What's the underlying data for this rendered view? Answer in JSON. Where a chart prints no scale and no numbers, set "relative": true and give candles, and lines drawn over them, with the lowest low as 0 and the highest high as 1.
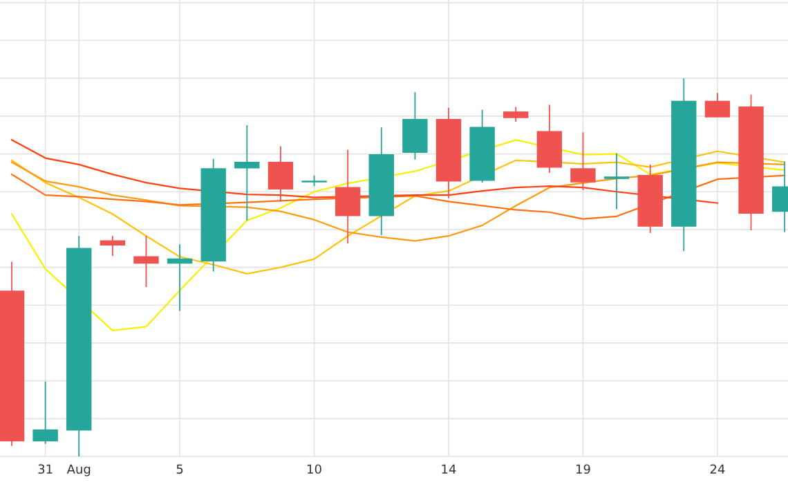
{
  "chart_data": {
    "type": "candlestick",
    "relative": true,
    "grid": true,
    "legend": false,
    "categories": [
      null,
      "31",
      "Aug",
      null,
      null,
      "5",
      null,
      null,
      null,
      "10",
      null,
      null,
      null,
      "14",
      null,
      null,
      null,
      "19",
      null,
      null,
      null,
      "24",
      null,
      null
    ],
    "ohlc": [
      [
        0.437,
        0.515,
        0.028,
        0.041
      ],
      [
        0.041,
        0.198,
        0.033,
        0.07
      ],
      [
        0.07,
        0.583,
        0.0,
        0.55
      ],
      [
        0.57,
        0.583,
        0.53,
        0.559
      ],
      [
        0.528,
        0.583,
        0.448,
        0.511
      ],
      [
        0.511,
        0.561,
        0.385,
        0.522
      ],
      [
        0.517,
        0.787,
        0.489,
        0.761
      ],
      [
        0.763,
        0.876,
        0.624,
        0.778
      ],
      [
        0.778,
        0.82,
        0.674,
        0.707
      ],
      [
        0.726,
        0.743,
        0.715,
        0.728
      ],
      [
        0.711,
        0.811,
        0.563,
        0.637
      ],
      [
        0.637,
        0.87,
        0.585,
        0.798
      ],
      [
        0.804,
        0.963,
        0.785,
        0.891
      ],
      [
        0.891,
        0.922,
        0.683,
        0.728
      ],
      [
        0.73,
        0.917,
        0.724,
        0.87
      ],
      [
        0.911,
        0.924,
        0.885,
        0.896
      ],
      [
        0.859,
        0.93,
        0.75,
        0.765
      ],
      [
        0.761,
        0.857,
        0.704,
        0.726
      ],
      [
        0.735,
        0.802,
        0.654,
        0.739
      ],
      [
        0.743,
        0.772,
        0.591,
        0.609
      ],
      [
        0.609,
        1.0,
        0.543,
        0.939
      ],
      [
        0.939,
        0.961,
        0.898,
        0.898
      ],
      [
        0.924,
        0.957,
        0.598,
        0.643
      ],
      [
        0.648,
        0.78,
        0.593,
        0.713
      ]
    ],
    "colors": [
      "#ef5350",
      "#26a69a",
      "#26a69a",
      "#ef5350",
      "#ef5350",
      "#26a69a",
      "#26a69a",
      "#26a69a",
      "#ef5350",
      "#26a69a",
      "#ef5350",
      "#26a69a",
      "#26a69a",
      "#ef5350",
      "#26a69a",
      "#ef5350",
      "#ef5350",
      "#ef5350",
      "#26a69a",
      "#ef5350",
      "#26a69a",
      "#ef5350",
      "#ef5350",
      "#26a69a"
    ],
    "series": [
      {
        "type": "line",
        "color": "#f7f000",
        "values": [
          0.641,
          0.496,
          null,
          0.333,
          0.343,
          0.439,
          null,
          0.624,
          0.657,
          0.7,
          0.722,
          null,
          0.754,
          null,
          null,
          0.837,
          null,
          0.798,
          0.8,
          0.746,
          null,
          0.776,
          null,
          0.757
        ]
      },
      {
        "type": "line",
        "color": "#ffc20e",
        "values": [
          0.783,
          0.724,
          0.685,
          0.641,
          0.583,
          0.528,
          0.507,
          0.483,
          0.5,
          0.522,
          0.583,
          null,
          0.689,
          0.702,
          null,
          0.783,
          null,
          0.774,
          0.778,
          0.765,
          null,
          0.807,
          null,
          0.778
        ]
      },
      {
        "type": "line",
        "color": "#ff9a10",
        "values": [
          0.778,
          0.728,
          0.713,
          0.691,
          0.678,
          0.663,
          null,
          0.659,
          0.648,
          0.626,
          0.593,
          0.58,
          0.57,
          0.583,
          0.611,
          0.663,
          0.711,
          null,
          0.735,
          0.743,
          null,
          0.778,
          null,
          0.772
        ]
      },
      {
        "type": "line",
        "color": "#ff6e10",
        "values": [
          0.746,
          0.691,
          0.687,
          0.68,
          0.674,
          0.665,
          null,
          0.672,
          0.676,
          0.68,
          null,
          null,
          0.689,
          0.674,
          0.663,
          0.652,
          0.646,
          0.628,
          0.635,
          null,
          null,
          0.733,
          null,
          0.743
        ]
      },
      {
        "type": "line",
        "color": "#ff4010",
        "values": [
          0.837,
          0.789,
          0.772,
          0.746,
          0.724,
          0.709,
          null,
          0.693,
          0.691,
          0.685,
          null,
          null,
          0.691,
          0.691,
          0.702,
          0.711,
          0.715,
          0.711,
          0.7,
          null,
          null,
          0.67,
          null,
          null
        ]
      }
    ]
  }
}
